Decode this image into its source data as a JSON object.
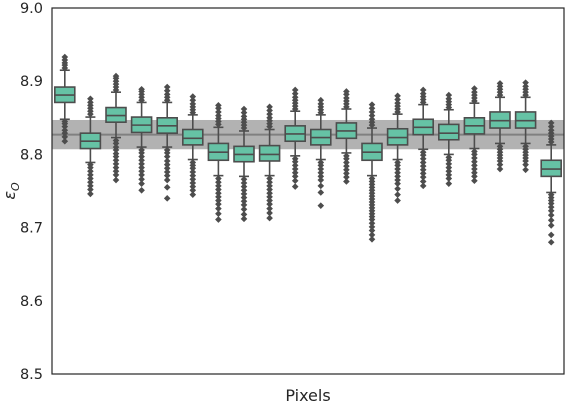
{
  "chart_data": {
    "type": "box",
    "title": "",
    "xlabel": "Pixels",
    "ylabel": "ε_O",
    "ylabel_main": "ε",
    "ylabel_sub": "O",
    "ylim": [
      8.5,
      9.0
    ],
    "yticks": [
      8.5,
      8.6,
      8.7,
      8.8,
      8.9,
      9.0
    ],
    "ytick_labels": [
      "8.5",
      "8.6",
      "8.7",
      "8.8",
      "8.9",
      "9.0"
    ],
    "grid": false,
    "legend": "none",
    "reference_line": 8.827,
    "reference_band": [
      8.807,
      8.847
    ],
    "colors": {
      "box_fill": "#66c2a5",
      "box_edge": "#4d4d4d",
      "band": "#aaaaaa",
      "reference_line": "#808080",
      "frame": "#262626"
    },
    "boxes": [
      {
        "q1": 8.871,
        "median": 8.881,
        "q3": 8.892,
        "whisker_low": 8.848,
        "whisker_high": 8.915,
        "outliers": [
          8.933,
          8.929,
          8.925,
          8.922,
          8.918,
          8.845,
          8.842,
          8.838,
          8.833,
          8.829,
          8.824,
          8.818
        ]
      },
      {
        "q1": 8.808,
        "median": 8.818,
        "q3": 8.829,
        "whisker_low": 8.789,
        "whisker_high": 8.851,
        "outliers": [
          8.855,
          8.859,
          8.863,
          8.867,
          8.871,
          8.876,
          8.786,
          8.782,
          8.777,
          8.772,
          8.767,
          8.762,
          8.757,
          8.752,
          8.746
        ]
      },
      {
        "q1": 8.844,
        "median": 8.853,
        "q3": 8.864,
        "whisker_low": 8.823,
        "whisker_high": 8.885,
        "outliers": [
          8.888,
          8.892,
          8.896,
          8.9,
          8.904,
          8.907,
          8.819,
          8.815,
          8.81,
          8.806,
          8.801,
          8.797,
          8.792,
          8.787,
          8.782,
          8.777,
          8.772,
          8.765
        ]
      },
      {
        "q1": 8.83,
        "median": 8.84,
        "q3": 8.851,
        "whisker_low": 8.81,
        "whisker_high": 8.871,
        "outliers": [
          8.874,
          8.878,
          8.882,
          8.886,
          8.889,
          8.806,
          8.802,
          8.797,
          8.792,
          8.787,
          8.782,
          8.777,
          8.772,
          8.766,
          8.76,
          8.751
        ]
      },
      {
        "q1": 8.829,
        "median": 8.839,
        "q3": 8.85,
        "whisker_low": 8.81,
        "whisker_high": 8.871,
        "outliers": [
          8.874,
          8.878,
          8.882,
          8.887,
          8.892,
          8.806,
          8.802,
          8.797,
          8.791,
          8.786,
          8.781,
          8.776,
          8.771,
          8.765,
          8.755,
          8.74
        ]
      },
      {
        "q1": 8.813,
        "median": 8.822,
        "q3": 8.834,
        "whisker_low": 8.793,
        "whisker_high": 8.854,
        "outliers": [
          8.857,
          8.861,
          8.865,
          8.869,
          8.874,
          8.879,
          8.789,
          8.785,
          8.781,
          8.776,
          8.771,
          8.766,
          8.761,
          8.756,
          8.751,
          8.745
        ]
      },
      {
        "q1": 8.792,
        "median": 8.803,
        "q3": 8.815,
        "whisker_low": 8.771,
        "whisker_high": 8.837,
        "outliers": [
          8.841,
          8.845,
          8.849,
          8.853,
          8.858,
          8.863,
          8.867,
          8.767,
          8.762,
          8.757,
          8.752,
          8.747,
          8.742,
          8.737,
          8.732,
          8.726,
          8.719,
          8.711
        ]
      },
      {
        "q1": 8.79,
        "median": 8.8,
        "q3": 8.811,
        "whisker_low": 8.77,
        "whisker_high": 8.832,
        "outliers": [
          8.836,
          8.84,
          8.844,
          8.848,
          8.852,
          8.857,
          8.862,
          8.766,
          8.761,
          8.756,
          8.751,
          8.746,
          8.741,
          8.736,
          8.731,
          8.725,
          8.718,
          8.712
        ]
      },
      {
        "q1": 8.791,
        "median": 8.8,
        "q3": 8.812,
        "whisker_low": 8.771,
        "whisker_high": 8.834,
        "outliers": [
          8.838,
          8.842,
          8.846,
          8.85,
          8.855,
          8.86,
          8.865,
          8.767,
          8.762,
          8.757,
          8.752,
          8.747,
          8.742,
          8.737,
          8.732,
          8.726,
          8.72,
          8.713
        ]
      },
      {
        "q1": 8.818,
        "median": 8.828,
        "q3": 8.839,
        "whisker_low": 8.798,
        "whisker_high": 8.859,
        "outliers": [
          8.862,
          8.866,
          8.87,
          8.874,
          8.878,
          8.883,
          8.888,
          8.794,
          8.79,
          8.785,
          8.78,
          8.775,
          8.77,
          8.764,
          8.756
        ]
      },
      {
        "q1": 8.813,
        "median": 8.823,
        "q3": 8.834,
        "whisker_low": 8.793,
        "whisker_high": 8.854,
        "outliers": [
          8.857,
          8.861,
          8.865,
          8.869,
          8.874,
          8.789,
          8.785,
          8.78,
          8.775,
          8.77,
          8.765,
          8.757,
          8.748,
          8.73
        ]
      },
      {
        "q1": 8.822,
        "median": 8.832,
        "q3": 8.843,
        "whisker_low": 8.802,
        "whisker_high": 8.862,
        "outliers": [
          8.865,
          8.869,
          8.873,
          8.877,
          8.882,
          8.886,
          8.798,
          8.794,
          8.789,
          8.784,
          8.779,
          8.774,
          8.769,
          8.763
        ]
      },
      {
        "q1": 8.792,
        "median": 8.803,
        "q3": 8.815,
        "whisker_low": 8.771,
        "whisker_high": 8.836,
        "outliers": [
          8.84,
          8.844,
          8.848,
          8.853,
          8.858,
          8.863,
          8.868,
          8.767,
          8.763,
          8.759,
          8.755,
          8.751,
          8.747,
          8.743,
          8.739,
          8.735,
          8.731,
          8.727,
          8.723,
          8.719,
          8.715,
          8.711,
          8.706,
          8.701,
          8.696,
          8.69,
          8.684
        ]
      },
      {
        "q1": 8.813,
        "median": 8.823,
        "q3": 8.835,
        "whisker_low": 8.793,
        "whisker_high": 8.855,
        "outliers": [
          8.858,
          8.862,
          8.866,
          8.87,
          8.875,
          8.88,
          8.789,
          8.785,
          8.78,
          8.775,
          8.77,
          8.765,
          8.76,
          8.753,
          8.745,
          8.737
        ]
      },
      {
        "q1": 8.827,
        "median": 8.837,
        "q3": 8.848,
        "whisker_low": 8.807,
        "whisker_high": 8.868,
        "outliers": [
          8.871,
          8.875,
          8.879,
          8.883,
          8.888,
          8.803,
          8.799,
          8.794,
          8.789,
          8.784,
          8.779,
          8.774,
          8.769,
          8.763,
          8.757
        ]
      },
      {
        "q1": 8.82,
        "median": 8.829,
        "q3": 8.841,
        "whisker_low": 8.8,
        "whisker_high": 8.861,
        "outliers": [
          8.864,
          8.868,
          8.872,
          8.876,
          8.881,
          8.796,
          8.792,
          8.787,
          8.782,
          8.777,
          8.772,
          8.767,
          8.76
        ]
      },
      {
        "q1": 8.828,
        "median": 8.839,
        "q3": 8.85,
        "whisker_low": 8.808,
        "whisker_high": 8.87,
        "outliers": [
          8.873,
          8.877,
          8.881,
          8.885,
          8.89,
          8.804,
          8.8,
          8.795,
          8.79,
          8.785,
          8.78,
          8.775,
          8.77,
          8.764
        ]
      },
      {
        "q1": 8.836,
        "median": 8.846,
        "q3": 8.858,
        "whisker_low": 8.815,
        "whisker_high": 8.878,
        "outliers": [
          8.881,
          8.885,
          8.889,
          8.893,
          8.897,
          8.811,
          8.807,
          8.803,
          8.799,
          8.795,
          8.791,
          8.786,
          8.78
        ]
      },
      {
        "q1": 8.836,
        "median": 8.846,
        "q3": 8.858,
        "whisker_low": 8.815,
        "whisker_high": 8.878,
        "outliers": [
          8.881,
          8.885,
          8.889,
          8.893,
          8.898,
          8.811,
          8.807,
          8.803,
          8.799,
          8.795,
          8.791,
          8.786,
          8.779
        ]
      },
      {
        "q1": 8.77,
        "median": 8.78,
        "q3": 8.792,
        "whisker_low": 8.748,
        "whisker_high": 8.813,
        "outliers": [
          8.817,
          8.821,
          8.825,
          8.829,
          8.833,
          8.838,
          8.843,
          8.745,
          8.741,
          8.737,
          8.733,
          8.728,
          8.723,
          8.717,
          8.71,
          8.703,
          8.69,
          8.68
        ]
      }
    ]
  }
}
